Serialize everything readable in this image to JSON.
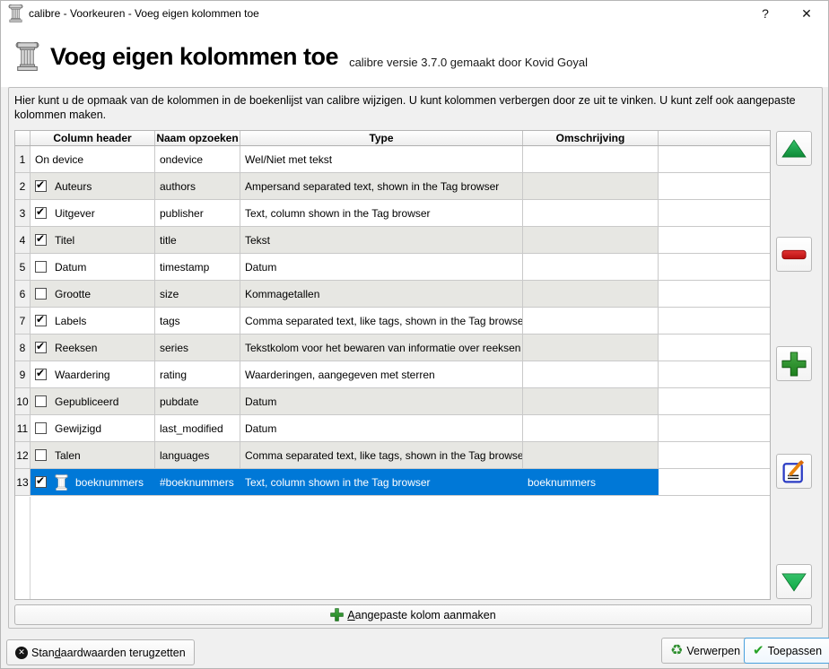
{
  "window": {
    "title": "calibre - Voorkeuren - Voeg eigen kolommen toe",
    "help_label": "?",
    "close_label": "✕"
  },
  "header": {
    "title": "Voeg eigen kolommen toe",
    "subtitle": "calibre versie 3.7.0 gemaakt door Kovid Goyal"
  },
  "description": "Hier kunt u de opmaak van de kolommen in de boekenlijst van calibre wijzigen. U kunt kolommen verbergen door ze uit te vinken. U kunt zelf ook aangepaste kolommen maken.",
  "table": {
    "columns": [
      "Column header",
      "Naam opzoeken",
      "Type",
      "Omschrijving"
    ],
    "rows": [
      {
        "num": "1",
        "checkbox": null,
        "name": "On device",
        "lookup": "ondevice",
        "type": "Wel/Niet met tekst",
        "desc": "",
        "selected": false,
        "icon": null
      },
      {
        "num": "2",
        "checkbox": true,
        "name": "Auteurs",
        "lookup": "authors",
        "type": "Ampersand separated text, shown in the Tag browser",
        "desc": "",
        "selected": false,
        "icon": null
      },
      {
        "num": "3",
        "checkbox": true,
        "name": "Uitgever",
        "lookup": "publisher",
        "type": "Text, column shown in the Tag browser",
        "desc": "",
        "selected": false,
        "icon": null
      },
      {
        "num": "4",
        "checkbox": true,
        "name": "Titel",
        "lookup": "title",
        "type": "Tekst",
        "desc": "",
        "selected": false,
        "icon": null
      },
      {
        "num": "5",
        "checkbox": false,
        "name": "Datum",
        "lookup": "timestamp",
        "type": "Datum",
        "desc": "",
        "selected": false,
        "icon": null
      },
      {
        "num": "6",
        "checkbox": false,
        "name": "Grootte",
        "lookup": "size",
        "type": "Kommagetallen",
        "desc": "",
        "selected": false,
        "icon": null
      },
      {
        "num": "7",
        "checkbox": true,
        "name": "Labels",
        "lookup": "tags",
        "type": "Comma separated text, like tags, shown in the Tag browser",
        "desc": "",
        "selected": false,
        "icon": null
      },
      {
        "num": "8",
        "checkbox": true,
        "name": "Reeksen",
        "lookup": "series",
        "type": "Tekstkolom voor het bewaren van informatie over reeksen",
        "desc": "",
        "selected": false,
        "icon": null
      },
      {
        "num": "9",
        "checkbox": true,
        "name": "Waardering",
        "lookup": "rating",
        "type": "Waarderingen, aangegeven met sterren",
        "desc": "",
        "selected": false,
        "icon": null
      },
      {
        "num": "10",
        "checkbox": false,
        "name": "Gepubliceerd",
        "lookup": "pubdate",
        "type": "Datum",
        "desc": "",
        "selected": false,
        "icon": null
      },
      {
        "num": "11",
        "checkbox": false,
        "name": "Gewijzigd",
        "lookup": "last_modified",
        "type": "Datum",
        "desc": "",
        "selected": false,
        "icon": null
      },
      {
        "num": "12",
        "checkbox": false,
        "name": "Talen",
        "lookup": "languages",
        "type": "Comma separated text, like tags, shown in the Tag browser",
        "desc": "",
        "selected": false,
        "icon": null
      },
      {
        "num": "13",
        "checkbox": true,
        "name": "boeknummers",
        "lookup": "#boeknummers",
        "type": "Text, column shown in the Tag browser",
        "desc": "boeknummers",
        "selected": true,
        "icon": "pillar"
      }
    ]
  },
  "side_buttons": [
    {
      "name": "move-up-button",
      "icon": "green-arrow-up-icon"
    },
    {
      "name": "remove-column-button",
      "icon": "red-minus-icon"
    },
    {
      "name": "add-column-button",
      "icon": "green-plus-icon"
    },
    {
      "name": "edit-column-button",
      "icon": "edit-pencil-icon"
    },
    {
      "name": "move-down-button",
      "icon": "green-arrow-down-icon"
    }
  ],
  "create_button": {
    "pre": "",
    "mnemonic": "A",
    "post": "angepaste kolom aanmaken"
  },
  "footer": {
    "reset": {
      "pre": "Stan",
      "mnemonic": "d",
      "post": "aardwaarden terugzetten"
    },
    "discard_label": "Verwerpen",
    "apply_label": "Toepassen"
  },
  "colors": {
    "selection": "#0078d7",
    "row_alt": "#e7e7e3",
    "green": "#2f9e2f",
    "red": "#d01818",
    "apply_border": "#48a0dd"
  }
}
